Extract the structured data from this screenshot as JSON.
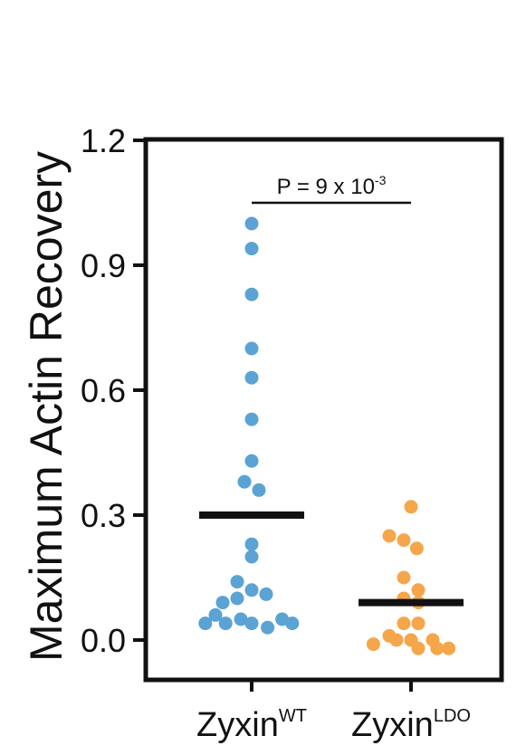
{
  "chart_data": {
    "type": "scatter",
    "ylabel": "Maximum Actin Recovery",
    "ylim": [
      -0.1,
      1.2
    ],
    "yticks": [
      "1.2",
      "0.9",
      "0.6",
      "0.3",
      "0.0"
    ],
    "ytick_values": [
      1.2,
      0.9,
      0.6,
      0.3,
      0.0
    ],
    "categories": [
      {
        "base": "Zyxin",
        "sup": "WT"
      },
      {
        "base": "Zyxin",
        "sup": "LDO"
      }
    ],
    "series": [
      {
        "category_index": 0,
        "color": "#5aa3d4",
        "mean": 0.3,
        "points": [
          {
            "y": 1.0,
            "offset": 0
          },
          {
            "y": 0.94,
            "offset": 0
          },
          {
            "y": 0.83,
            "offset": 0
          },
          {
            "y": 0.7,
            "offset": 0
          },
          {
            "y": 0.63,
            "offset": 0
          },
          {
            "y": 0.53,
            "offset": 0
          },
          {
            "y": 0.43,
            "offset": 0
          },
          {
            "y": 0.38,
            "offset": -0.5
          },
          {
            "y": 0.36,
            "offset": 0.5
          },
          {
            "y": 0.23,
            "offset": 0
          },
          {
            "y": 0.2,
            "offset": 0
          },
          {
            "y": 0.14,
            "offset": -1
          },
          {
            "y": 0.12,
            "offset": 0
          },
          {
            "y": 0.11,
            "offset": 1
          },
          {
            "y": 0.1,
            "offset": -1
          },
          {
            "y": 0.09,
            "offset": -2
          },
          {
            "y": 0.06,
            "offset": -2.5
          },
          {
            "y": 0.05,
            "offset": -0.75
          },
          {
            "y": 0.05,
            "offset": 2.1
          },
          {
            "y": 0.04,
            "offset": -3.2
          },
          {
            "y": 0.04,
            "offset": 0
          },
          {
            "y": 0.04,
            "offset": 2.8
          },
          {
            "y": 0.03,
            "offset": 1.1
          },
          {
            "y": 0.04,
            "offset": -1.8
          }
        ]
      },
      {
        "category_index": 1,
        "color": "#f5a64a",
        "mean": 0.09,
        "points": [
          {
            "y": 0.32,
            "offset": 0
          },
          {
            "y": 0.25,
            "offset": -1.5
          },
          {
            "y": 0.24,
            "offset": -0.5
          },
          {
            "y": 0.22,
            "offset": 0.4
          },
          {
            "y": 0.15,
            "offset": -0.5
          },
          {
            "y": 0.12,
            "offset": 0.5
          },
          {
            "y": 0.1,
            "offset": -0.5
          },
          {
            "y": 0.09,
            "offset": 0.5
          },
          {
            "y": 0.04,
            "offset": -0.5
          },
          {
            "y": 0.04,
            "offset": 0.5
          },
          {
            "y": 0.01,
            "offset": -1.5
          },
          {
            "y": 0.0,
            "offset": -1
          },
          {
            "y": 0.0,
            "offset": 0
          },
          {
            "y": 0.0,
            "offset": 1.5
          },
          {
            "y": -0.01,
            "offset": -2.6
          },
          {
            "y": -0.02,
            "offset": 2.6
          },
          {
            "y": -0.02,
            "offset": 1.8
          },
          {
            "y": -0.02,
            "offset": 0.5
          }
        ]
      }
    ],
    "annotation": {
      "text": "P = 9 x 10",
      "sup": "-3"
    }
  }
}
